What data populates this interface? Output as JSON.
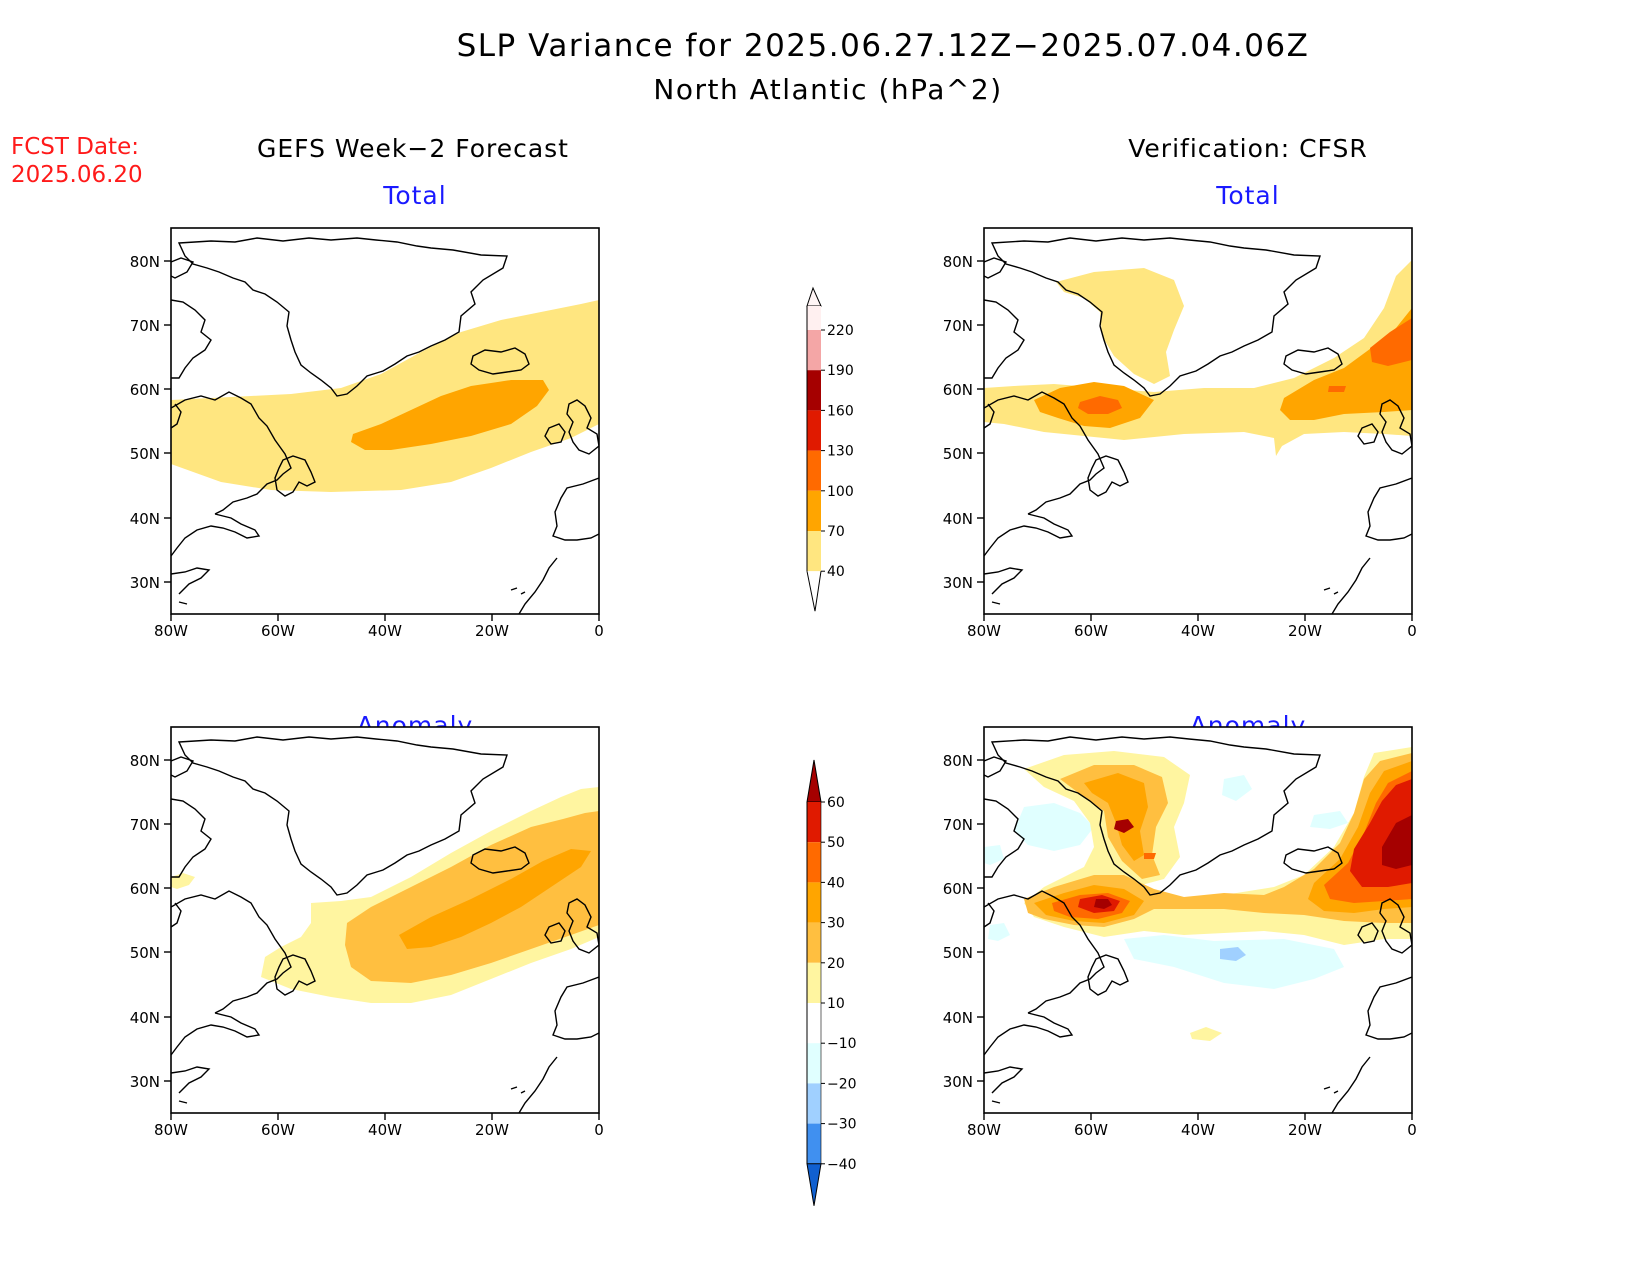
{
  "title": {
    "line1": "SLP Variance for 2025.06.27.12Z−2025.07.04.06Z",
    "line2": "North Atlantic (hPa^2)"
  },
  "fcst_date": {
    "label": "FCST Date:",
    "value": "2025.06.20"
  },
  "columns": {
    "forecast": "GEFS Week−2 Forecast",
    "verification": "Verification: CFSR"
  },
  "panel_titles": {
    "total": "Total",
    "anomaly": "Anomaly"
  },
  "axis": {
    "lat_labels": [
      "80N",
      "70N",
      "60N",
      "50N",
      "40N",
      "30N"
    ],
    "lon_labels": [
      "80W",
      "60W",
      "40W",
      "20W",
      "0"
    ]
  },
  "colorbars": {
    "total": {
      "levels": [
        "220",
        "190",
        "160",
        "130",
        "100",
        "70",
        "40"
      ],
      "colors": [
        "#fff0f0",
        "#f4a6a6",
        "#a50000",
        "#e01a00",
        "#ff6a00",
        "#ffa500",
        "#ffe680"
      ]
    },
    "anomaly": {
      "levels": [
        "60",
        "50",
        "40",
        "30",
        "20",
        "10",
        "−10",
        "−20",
        "−30",
        "−40"
      ],
      "colors": [
        "#a50000",
        "#e01a00",
        "#ff6a00",
        "#ffa500",
        "#ffbf40",
        "#fff5a0",
        "#ffffff",
        "#e0ffff",
        "#a0d0ff",
        "#4090f0",
        "#2070e0",
        "#1060d0"
      ]
    }
  },
  "chart_data": {
    "type": "heatmap",
    "domain": {
      "lon": [
        -80,
        0
      ],
      "lat": [
        25,
        85
      ]
    },
    "panels": [
      {
        "column": "GEFS Week−2 Forecast",
        "panel": "Total",
        "features": [
          {
            "value_range": [
              40,
              70
            ],
            "lat": [
              45,
              74
            ],
            "lon": [
              -80,
              0
            ]
          },
          {
            "value_range": [
              70,
              100
            ],
            "lat": [
              50,
              62
            ],
            "lon": [
              -46,
              -10
            ]
          }
        ]
      },
      {
        "column": "Verification: CFSR",
        "panel": "Total",
        "features": [
          {
            "value_range": [
              40,
              70
            ],
            "lat": [
              49,
              78
            ],
            "lon": [
              -80,
              0
            ]
          },
          {
            "value_range": [
              70,
              100
            ],
            "lat": [
              53,
              62
            ],
            "lon": [
              -67,
              -50
            ]
          },
          {
            "value_range": [
              70,
              100
            ],
            "lat": [
              54,
              70
            ],
            "lon": [
              -24,
              0
            ]
          },
          {
            "value_range": [
              100,
              130
            ],
            "lat": [
              56,
              68
            ],
            "lon": [
              -14,
              0
            ]
          }
        ]
      },
      {
        "column": "GEFS Week−2 Forecast",
        "panel": "Anomaly",
        "features": [
          {
            "value_range": [
              10,
              20
            ],
            "lat": [
              42,
              75
            ],
            "lon": [
              -80,
              0
            ]
          },
          {
            "value_range": [
              20,
              30
            ],
            "lat": [
              46,
              72
            ],
            "lon": [
              -48,
              0
            ]
          },
          {
            "value_range": [
              30,
              40
            ],
            "lat": [
              50,
              66
            ],
            "lon": [
              -38,
              -5
            ]
          }
        ]
      },
      {
        "column": "Verification: CFSR",
        "panel": "Anomaly",
        "features": [
          {
            "value_range": [
              10,
              20
            ],
            "lat": [
              50,
              82
            ],
            "lon": [
              -75,
              0
            ]
          },
          {
            "value_range": [
              30,
              40
            ],
            "lat": [
              55,
              80
            ],
            "lon": [
              -70,
              0
            ]
          },
          {
            "value_range": [
              50,
              60
            ],
            "lat": [
              56,
              60
            ],
            "lon": [
              -62,
              -52
            ]
          },
          {
            "value_range": [
              50,
              60
            ],
            "lat": [
              58,
              75
            ],
            "lon": [
              -12,
              0
            ]
          },
          {
            "value_range": [
              -20,
              -10
            ],
            "lat": [
              45,
              54
            ],
            "lon": [
              -55,
              -15
            ]
          },
          {
            "value_range": [
              -30,
              -20
            ],
            "lat": [
              49,
              51
            ],
            "lon": [
              -35,
              -30
            ]
          }
        ]
      }
    ]
  }
}
